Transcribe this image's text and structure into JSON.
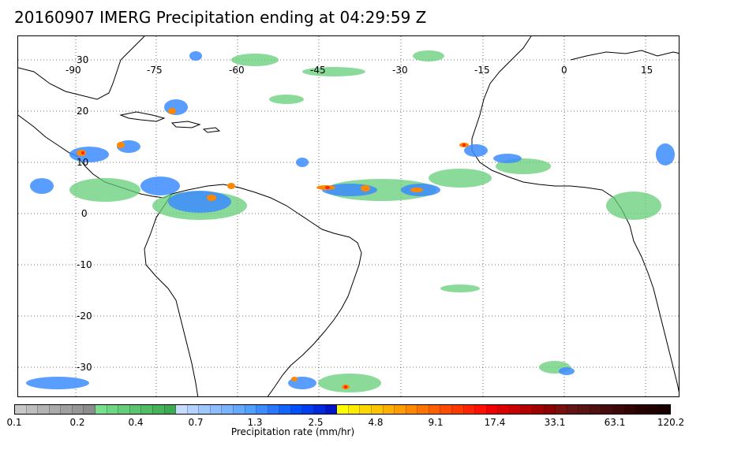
{
  "title": "20160907 IMERG Precipitation ending at 04:29:59 Z",
  "map": {
    "longitude_labels": [
      "-90",
      "-75",
      "-60",
      "-45",
      "-30",
      "-15",
      "0",
      "15"
    ],
    "latitude_labels": [
      "30",
      "20",
      "10",
      "0",
      "-10",
      "-20",
      "-30"
    ],
    "gridlines": "dotted",
    "land_outline_color": "#000000"
  },
  "colorbar": {
    "label": "Precipitation rate (mm/hr)",
    "tick_labels": [
      "0.1",
      "0.2",
      "0.4",
      "0.7",
      "1.3",
      "2.5",
      "4.8",
      "9.1",
      "17.4",
      "33.1",
      "63.1",
      "120.2"
    ],
    "colors": [
      "#c8c8c8",
      "#bebebe",
      "#b4b4b4",
      "#aaaaaa",
      "#a0a0a0",
      "#969696",
      "#8c8c8c",
      "#78e08c",
      "#6ed782",
      "#64ce78",
      "#5ac56e",
      "#50bc64",
      "#46b35a",
      "#3caa50",
      "#c8dcff",
      "#b4d2ff",
      "#a0c8ff",
      "#8cbeff",
      "#78b4ff",
      "#64aaff",
      "#50a0ff",
      "#3c8cff",
      "#2878ff",
      "#1464ff",
      "#0050ff",
      "#003cf0",
      "#0028dc",
      "#0014c8",
      "#ffff00",
      "#ffec00",
      "#ffd800",
      "#ffc400",
      "#ffb000",
      "#ff9c00",
      "#ff8800",
      "#ff7400",
      "#ff6000",
      "#ff4c00",
      "#ff3800",
      "#ff2400",
      "#ff1000",
      "#f00000",
      "#dc0000",
      "#c80000",
      "#b40000",
      "#a00000",
      "#8c0000",
      "#781010",
      "#641414",
      "#5a1414",
      "#501010",
      "#460c0c",
      "#3c0808",
      "#320404",
      "#280000",
      "#200000",
      "#1a0000"
    ]
  }
}
